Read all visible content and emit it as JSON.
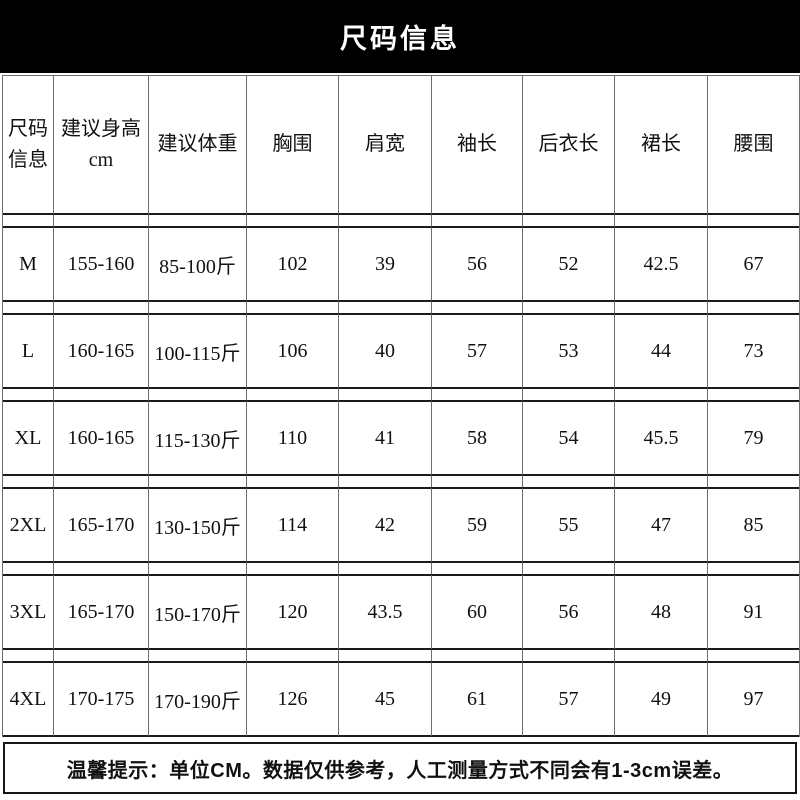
{
  "title_bar": {
    "title": "尺码信息"
  },
  "size_table": {
    "headers": [
      "尺码\n信息",
      "建议身高\ncm",
      "建议体重",
      "胸围",
      "肩宽",
      "袖长",
      "后衣长",
      "裙长",
      "腰围"
    ],
    "rows": [
      {
        "cells": [
          "M",
          "155-160",
          "85-100斤",
          "102",
          "39",
          "56",
          "52",
          "42.5",
          "67"
        ]
      },
      {
        "cells": [
          "L",
          "160-165",
          "100-115斤",
          "106",
          "40",
          "57",
          "53",
          "44",
          "73"
        ]
      },
      {
        "cells": [
          "XL",
          "160-165",
          "115-130斤",
          "110",
          "41",
          "58",
          "54",
          "45.5",
          "79"
        ]
      },
      {
        "cells": [
          "2XL",
          "165-170",
          "130-150斤",
          "114",
          "42",
          "59",
          "55",
          "47",
          "85"
        ]
      },
      {
        "cells": [
          "3XL",
          "165-170",
          "150-170斤",
          "120",
          "43.5",
          "60",
          "56",
          "48",
          "91"
        ]
      },
      {
        "cells": [
          "4XL",
          "170-175",
          "170-190斤",
          "126",
          "45",
          "61",
          "57",
          "49",
          "97"
        ]
      }
    ]
  },
  "footer": {
    "note": "温馨提示：单位CM。数据仅供参考，人工测量方式不同会有1-3cm误差。"
  }
}
